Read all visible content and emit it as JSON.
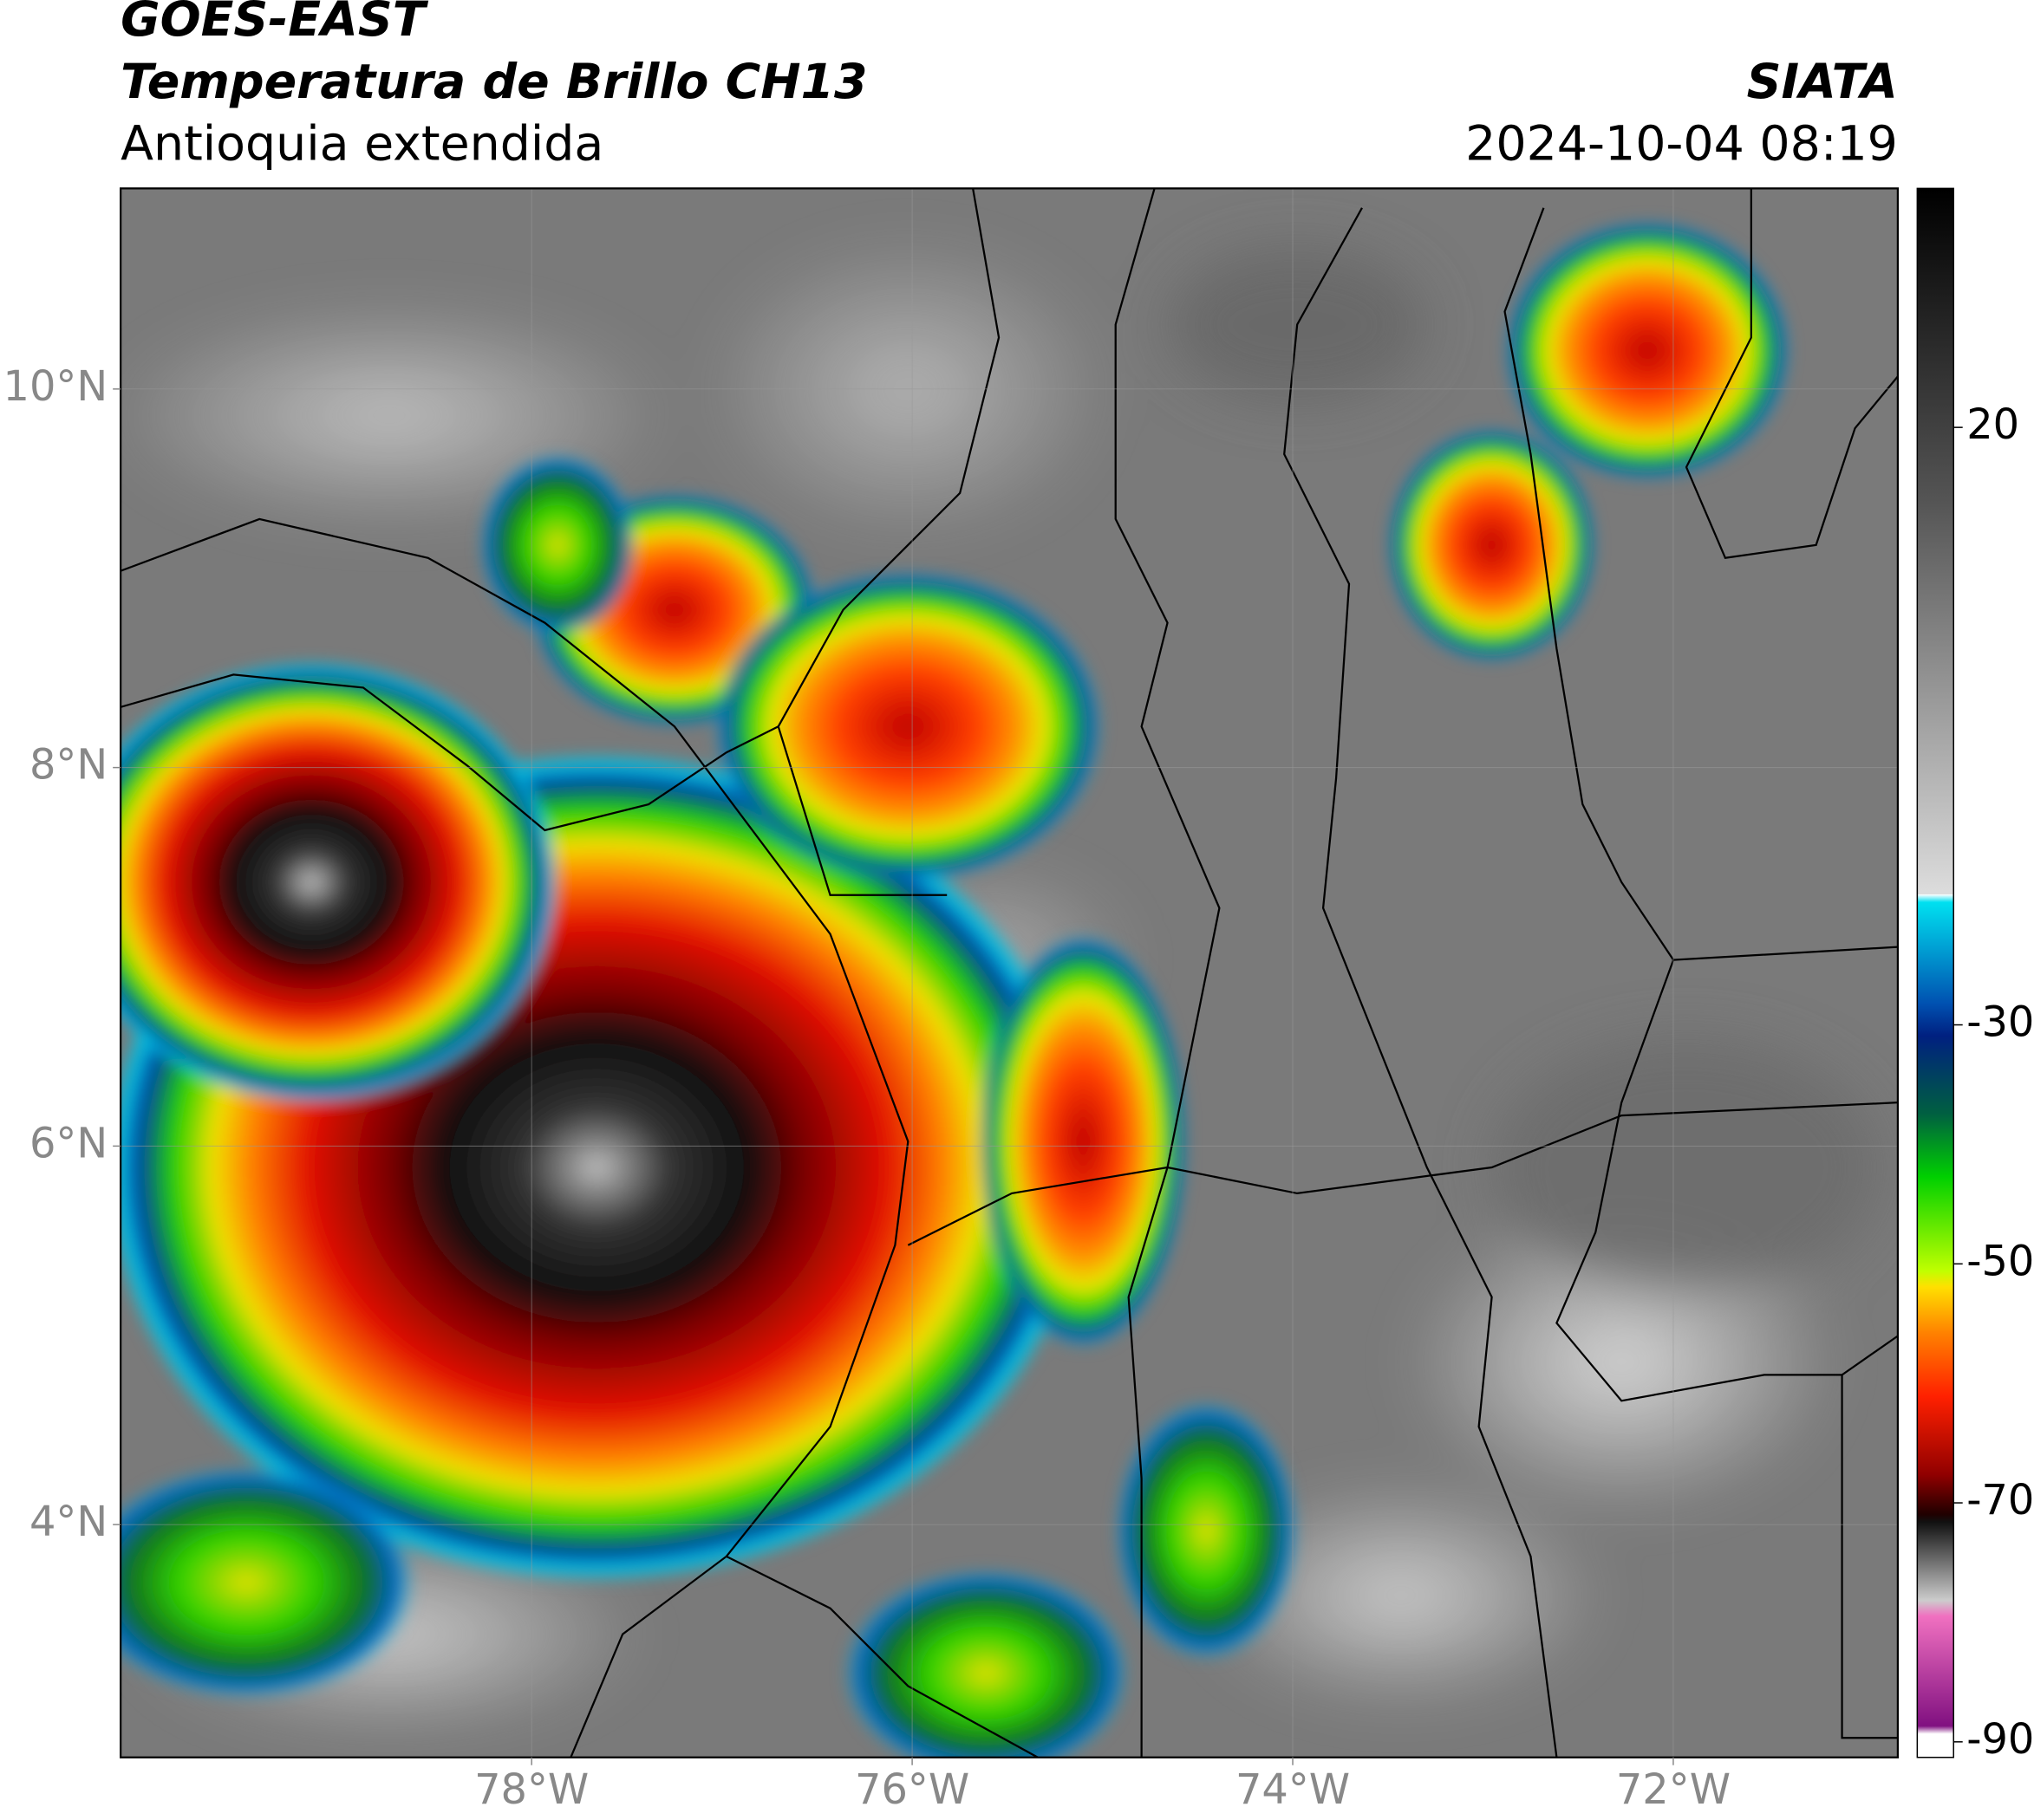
{
  "header": {
    "title": "GOES-EAST",
    "subtitle": "Temperatura de Brillo CH13",
    "region": "Antioquia extendida",
    "source": "SIATA",
    "datetime": "2024-10-04 08:19"
  },
  "map": {
    "xlim": [
      -80.16,
      -70.82
    ],
    "ylim": [
      2.77,
      11.06
    ],
    "xticks": [
      {
        "value": -78,
        "label": "78°W"
      },
      {
        "value": -76,
        "label": "76°W"
      },
      {
        "value": -74,
        "label": "74°W"
      },
      {
        "value": -72,
        "label": "72°W"
      }
    ],
    "yticks": [
      {
        "value": 4,
        "label": "4°N"
      },
      {
        "value": 6,
        "label": "6°N"
      },
      {
        "value": 8,
        "label": "8°N"
      },
      {
        "value": 10,
        "label": "10°N"
      }
    ],
    "grid": true
  },
  "colorbar": {
    "lim": [
      -91.3,
      40
    ],
    "ticks": [
      20,
      -30,
      -50,
      -70,
      -90
    ]
  }
}
